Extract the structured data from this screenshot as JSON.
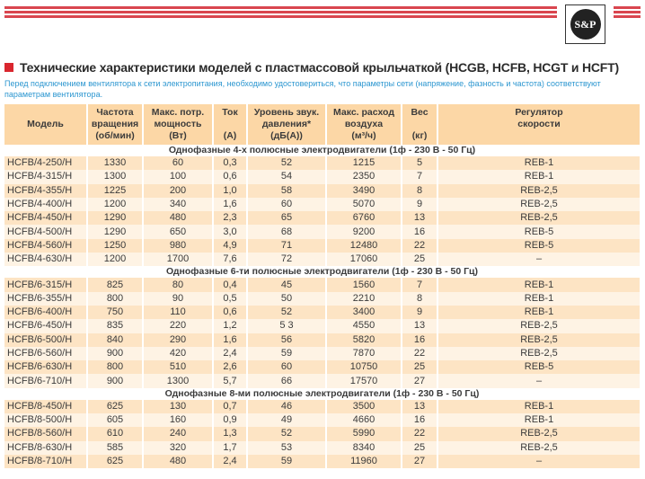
{
  "logo": {
    "text": "S&P"
  },
  "title": "Технические характеристики моделей с пластмассовой крыльчаткой (HCGB, HCFB, HCGT и HCFT)",
  "subtitle": "Перед подключением вентилятора к сети электропитания, необходимо удостовериться, что параметры сети (напряжение, фазность и частота) соответствуют параметрам вентилятора.",
  "colors": {
    "accent": "#d9262e",
    "stripe": "#d9464f",
    "subtitle": "#2b96d0",
    "header_bg": "#fcd7a6",
    "row_dark": "#fde4c4",
    "row_light": "#fef3e4"
  },
  "columns": [
    {
      "l1": "",
      "l2": "Модель",
      "l3": ""
    },
    {
      "l1": "Частота",
      "l2": "вращения",
      "l3": "(об/мин)"
    },
    {
      "l1": "Макс. потр.",
      "l2": "мощность",
      "l3": "(Вт)"
    },
    {
      "l1": "Ток",
      "l2": "",
      "l3": "(А)"
    },
    {
      "l1": "Уровень звук.",
      "l2": "давления*",
      "l3": "(дБ(А))"
    },
    {
      "l1": "Макс. расход",
      "l2": "воздуха",
      "l3": "(м³/ч)"
    },
    {
      "l1": "Вес",
      "l2": "",
      "l3": "(кг)"
    },
    {
      "l1": "Регулятор",
      "l2": "скорости",
      "l3": ""
    }
  ],
  "sections": [
    {
      "title": "Однофазные 4-х полюсные электродвигатели (1ф - 230 В - 50 Гц)",
      "rows": [
        [
          "HCFB/4-250/H",
          "1330",
          "60",
          "0,3",
          "52",
          "1215",
          "5",
          "REB-1"
        ],
        [
          "HCFB/4-315/H",
          "1300",
          "100",
          "0,6",
          "54",
          "2350",
          "7",
          "REB-1"
        ],
        [
          "HCFB/4-355/H",
          "1225",
          "200",
          "1,0",
          "58",
          "3490",
          "8",
          "REB-2,5"
        ],
        [
          "HCFB/4-400/H",
          "1200",
          "340",
          "1,6",
          "60",
          "5070",
          "9",
          "REB-2,5"
        ],
        [
          "HCFB/4-450/H",
          "1290",
          "480",
          "2,3",
          "65",
          "6760",
          "13",
          "REB-2,5"
        ],
        [
          "HCFB/4-500/H",
          "1290",
          "650",
          "3,0",
          "68",
          "9200",
          "16",
          "REB-5"
        ],
        [
          "HCFB/4-560/H",
          "1250",
          "980",
          "4,9",
          "71",
          "12480",
          "22",
          "REB-5"
        ],
        [
          "HCFB/4-630/H",
          "1200",
          "1700",
          "7,6",
          "72",
          "17060",
          "25",
          "–"
        ]
      ]
    },
    {
      "title": "Однофазные 6-ти полюсные электродвигатели (1ф - 230 В - 50 Гц)",
      "rows": [
        [
          "HCFB/6-315/H",
          "825",
          "80",
          "0,4",
          "45",
          "1560",
          "7",
          "REB-1"
        ],
        [
          "HCFB/6-355/H",
          "800",
          "90",
          "0,5",
          "50",
          "2210",
          "8",
          "REB-1"
        ],
        [
          "HCFB/6-400/H",
          "750",
          "110",
          "0,6",
          "52",
          "3400",
          "9",
          "REB-1"
        ],
        [
          "HCFB/6-450/H",
          "835",
          "220",
          "1,2",
          "5 3",
          "4550",
          "13",
          "REB-2,5"
        ],
        [
          "HCFB/6-500/H",
          "840",
          "290",
          "1,6",
          "56",
          "5820",
          "16",
          "REB-2,5"
        ],
        [
          "HCFB/6-560/H",
          "900",
          "420",
          "2,4",
          "59",
          "7870",
          "22",
          "REB-2,5"
        ],
        [
          "HCFB/6-630/H",
          "800",
          "510",
          "2,6",
          "60",
          "10750",
          "25",
          "REB-5"
        ],
        [
          "HCFB/6-710/H",
          "900",
          "1300",
          "5,7",
          "66",
          "17570",
          "27",
          "–"
        ]
      ]
    },
    {
      "title": "Однофазные 8-ми полюсные электродвигатели (1ф - 230 В - 50 Гц)",
      "rows": [
        [
          "HCFB/8-450/H",
          "625",
          "130",
          "0,7",
          "46",
          "3500",
          "13",
          "REB-1"
        ],
        [
          "HCFB/8-500/H",
          "605",
          "160",
          "0,9",
          "49",
          "4660",
          "16",
          "REB-1"
        ],
        [
          "HCFB/8-560/H",
          "610",
          "240",
          "1,3",
          "52",
          "5990",
          "22",
          "REB-2,5"
        ],
        [
          "HCFB/8-630/H",
          "585",
          "320",
          "1,7",
          "53",
          "8340",
          "25",
          "REB-2,5"
        ],
        [
          "HCFB/8-710/H",
          "625",
          "480",
          "2,4",
          "59",
          "11960",
          "27",
          "–"
        ]
      ]
    }
  ]
}
